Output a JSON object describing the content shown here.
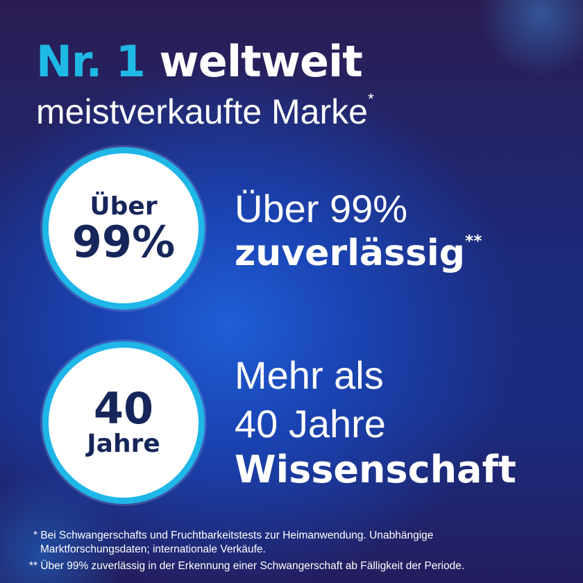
{
  "headline": {
    "accent": "Nr. 1",
    "rest": "weltweit"
  },
  "subheadline": {
    "text": "meistverkaufte Marke",
    "mark": "*"
  },
  "badges": [
    {
      "small": "Über",
      "big": "99%"
    },
    {
      "big": "40",
      "small": "Jahre"
    }
  ],
  "claims": [
    {
      "line1": "Über 99%",
      "line2": "zuverlässig",
      "mark": "**"
    },
    {
      "line1": "Mehr als",
      "line2": "40 Jahre",
      "line3": "Wissenschaft"
    }
  ],
  "footnotes": [
    {
      "mark": "*",
      "text": "Bei Schwangerschafts und Fruchtbarkeitstests zur Heimanwendung. Unabhängige",
      "text2": "Marktforschungsdaten; internationale Verkäufe."
    },
    {
      "mark": "**",
      "text": "Über 99% zuverlässig in der Erkennung einer Schwangerschaft ab Fälligkeit der Periode."
    }
  ],
  "colors": {
    "accent": "#1fb9e6",
    "navy": "#16265a",
    "ring": "#1fb6e8"
  }
}
